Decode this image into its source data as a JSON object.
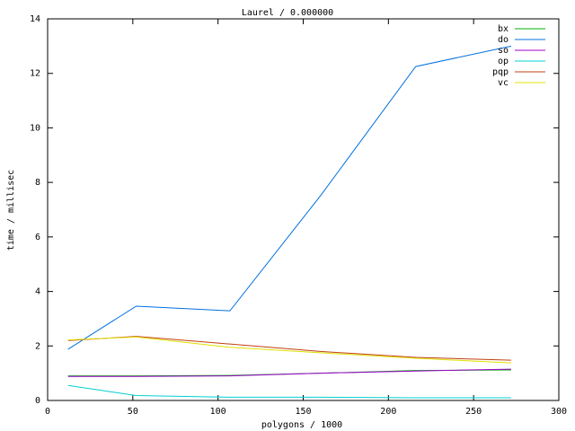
{
  "chart_data": {
    "type": "line",
    "title": "Laurel / 0.000000",
    "x_label": "polygons / 1000",
    "y_label": "time / millisec",
    "x": [
      12,
      52,
      107,
      160,
      216,
      272
    ],
    "series": [
      {
        "name": "bx",
        "color": "#00b000",
        "values": [
          0.9,
          0.9,
          0.92,
          1.0,
          1.1,
          1.12
        ]
      },
      {
        "name": "do",
        "color": "#0070e0",
        "values": [
          1.88,
          3.46,
          3.29,
          7.5,
          12.25,
          13.0
        ]
      },
      {
        "name": "so",
        "color": "#a000d0",
        "values": [
          0.88,
          0.88,
          0.9,
          1.0,
          1.08,
          1.15
        ]
      },
      {
        "name": "op",
        "color": "#00d0d0",
        "values": [
          0.55,
          0.18,
          0.12,
          0.12,
          0.1,
          0.1
        ]
      },
      {
        "name": "pqp",
        "color": "#c04010",
        "values": [
          2.2,
          2.35,
          2.07,
          1.8,
          1.58,
          1.48
        ]
      },
      {
        "name": "vc",
        "color": "#e0e000",
        "values": [
          2.22,
          2.33,
          1.95,
          1.75,
          1.55,
          1.38
        ]
      }
    ],
    "xlim": [
      0,
      300
    ],
    "ylim": [
      0,
      14
    ],
    "xticks": [
      0,
      50,
      100,
      150,
      200,
      250,
      300
    ],
    "yticks": [
      0,
      2,
      4,
      6,
      8,
      10,
      12,
      14
    ],
    "grid": false,
    "legend": "top-right"
  }
}
